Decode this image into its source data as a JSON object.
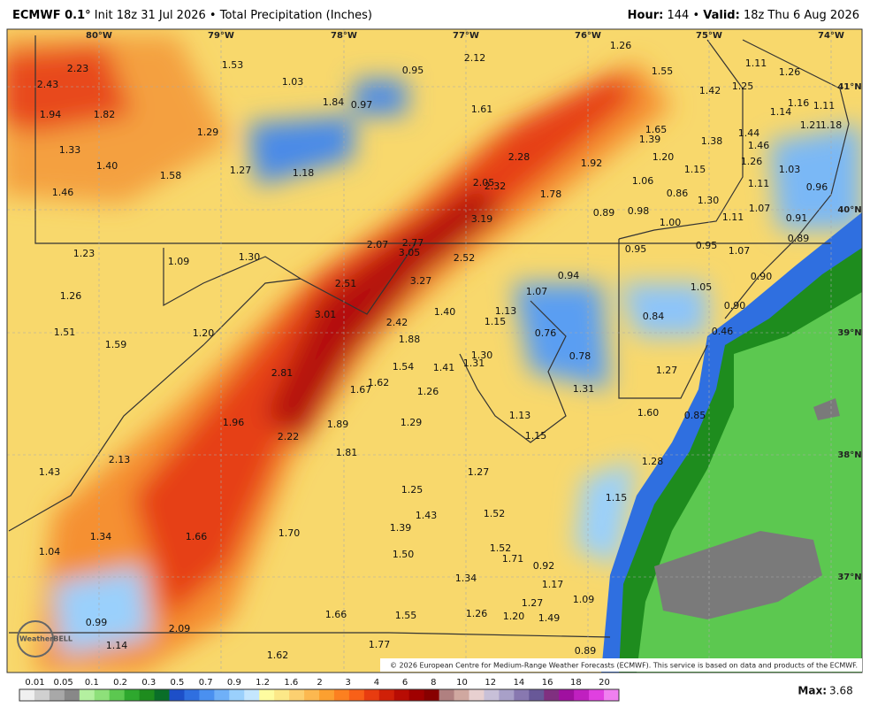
{
  "header": {
    "model": "ECMWF 0.1°",
    "init": "Init 18z 31 Jul 2026",
    "sep1": "•",
    "product": "Total Precipitation (Inches)",
    "hour_label": "Hour:",
    "hour": "144",
    "sep2": "•",
    "valid_label": "Valid:",
    "valid": "18z Thu 6 Aug 2026"
  },
  "map": {
    "lon_labels": [
      "80°W",
      "79°W",
      "78°W",
      "77°W",
      "76°W",
      "75°W",
      "74°W"
    ],
    "lat_labels": [
      "41°N",
      "40°N",
      "39°N",
      "38°N",
      "37°N"
    ],
    "values": [
      "2.43",
      "2.23",
      "1.94",
      "1.82",
      "1.33",
      "1.40",
      "1.46",
      "1.58",
      "1.27",
      "1.29",
      "1.53",
      "1.03",
      "1.18",
      "1.84",
      "0.97",
      "0.95",
      "2.12",
      "1.61",
      "2.28",
      "2.05",
      "2.32",
      "3.19",
      "1.78",
      "1.92",
      "1.26",
      "1.55",
      "1.65",
      "1.39",
      "1.42",
      "1.25",
      "1.11",
      "1.26",
      "1.14",
      "1.16",
      "1.11",
      "1.44",
      "1.46",
      "1.26",
      "1.03",
      "1.38",
      "1.20",
      "1.15",
      "1.06",
      "0.86",
      "1.30",
      "1.11",
      "0.96",
      "1.07",
      "0.91",
      "0.89",
      "0.98",
      "0.89",
      "1.00",
      "1.11",
      "0.95",
      "0.95",
      "1.07",
      "0.90",
      "0.90",
      "1.05",
      "0.84",
      "0.46",
      "1.27",
      "1.60",
      "0.85",
      "1.28",
      "1.15",
      "1.21",
      "1.18",
      "1.23",
      "1.09",
      "1.30",
      "2.07",
      "2.77",
      "3.05",
      "2.52",
      "2.51",
      "3.27",
      "1.26",
      "3.01",
      "2.42",
      "1.40",
      "1.13",
      "1.15",
      "1.07",
      "0.94",
      "0.76",
      "0.78",
      "1.51",
      "1.59",
      "1.20",
      "1.88",
      "1.30",
      "1.31",
      "1.54",
      "1.41",
      "2.81",
      "1.67",
      "1.62",
      "1.26",
      "1.31",
      "1.96",
      "1.89",
      "1.29",
      "1.13",
      "1.15",
      "2.22",
      "1.81",
      "2.13",
      "1.43",
      "1.27",
      "1.25",
      "1.43",
      "1.52",
      "1.39",
      "1.34",
      "1.66",
      "1.70",
      "1.04",
      "1.50",
      "1.52",
      "0.92",
      "1.34",
      "1.17",
      "1.27",
      "1.09",
      "1.66",
      "1.55",
      "1.26",
      "1.20",
      "1.49",
      "0.99",
      "2.09",
      "1.14",
      "1.77",
      "1.62",
      "0.89",
      "1.71"
    ],
    "logo": "WeatherBELL",
    "copyright": "© 2026 European Centre for Medium-Range Weather Forecasts (ECMWF). This service is based on data and products of the ECMWF."
  },
  "legend": {
    "labels": [
      "0.01",
      "0.05",
      "0.1",
      "0.2",
      "0.3",
      "0.5",
      "0.7",
      "0.9",
      "1.2",
      "1.6",
      "2",
      "3",
      "4",
      "6",
      "8",
      "10",
      "12",
      "14",
      "16",
      "18",
      "20"
    ],
    "colors": [
      "#f0f0f0",
      "#d0d0d0",
      "#a8a8a8",
      "#888888",
      "#b4f0a0",
      "#8ee07a",
      "#5cc850",
      "#2ea82e",
      "#1e8c1e",
      "#0a6e28",
      "#1d4fc8",
      "#2f6fe0",
      "#4a90f0",
      "#6fb0f8",
      "#9ad0fc",
      "#c4e6fe",
      "#fefca0",
      "#fce888",
      "#fcd070",
      "#fcb850",
      "#fca030",
      "#fc8020",
      "#f86018",
      "#e83c10",
      "#d02008",
      "#b80c04",
      "#a00000",
      "#880000",
      "#b08080",
      "#d0a8a0",
      "#e8d0d0",
      "#c8c0d8",
      "#a8a0c8",
      "#8878b0",
      "#685898",
      "#803080",
      "#a010a0",
      "#c020c0",
      "#e040e0",
      "#f080f0"
    ]
  },
  "max": {
    "label": "Max:",
    "value": "3.68"
  }
}
